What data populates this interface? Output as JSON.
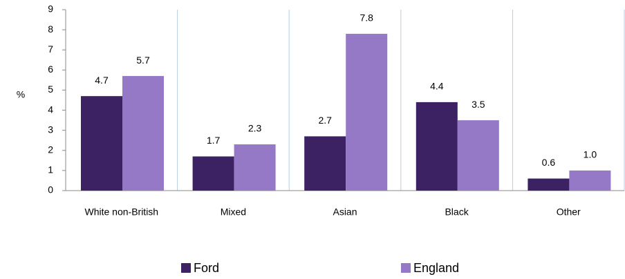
{
  "chart_data": {
    "type": "bar",
    "ylabel": "%",
    "categories": [
      "White non-British",
      "Mixed",
      "Asian",
      "Black",
      "Other"
    ],
    "series": [
      {
        "name": "Ford",
        "color": "#3c2163",
        "values": [
          4.7,
          1.7,
          2.7,
          4.4,
          0.6
        ],
        "value_labels": [
          "4.7",
          "1.7",
          "2.7",
          "4.4",
          "0.6"
        ]
      },
      {
        "name": "England",
        "color": "#9679c6",
        "values": [
          5.7,
          2.3,
          7.8,
          3.5,
          1.0
        ],
        "value_labels": [
          "5.7",
          "2.3",
          "7.8",
          "3.5",
          "1.0"
        ]
      }
    ],
    "ylim": [
      0,
      9
    ],
    "yticks": [
      0,
      1,
      2,
      3,
      4,
      5,
      6,
      7,
      8,
      9
    ],
    "legend": "bottom"
  }
}
